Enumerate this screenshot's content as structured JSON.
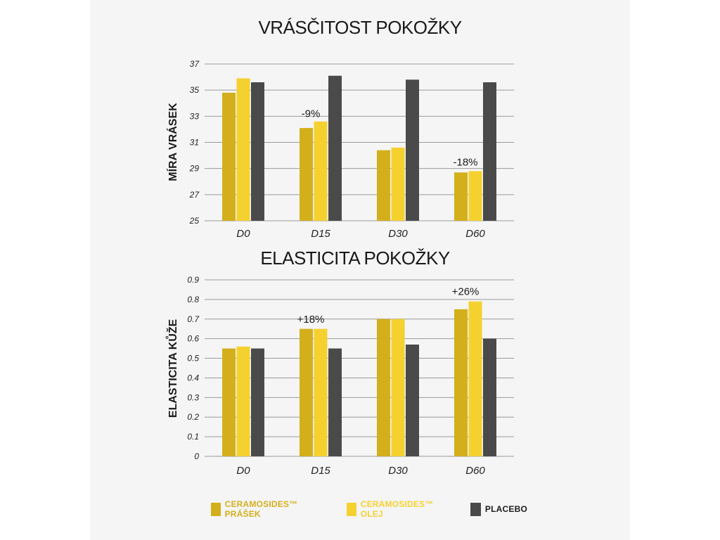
{
  "chart_data": [
    {
      "type": "bar",
      "title": "VRÁSČITOST POKOŽKY",
      "ylabel": "MÍRA VRÁSEK",
      "xlabel": "",
      "categories": [
        "D0",
        "D15",
        "D30",
        "D60"
      ],
      "yticks": [
        "25",
        "27",
        "29",
        "31",
        "33",
        "35",
        "37"
      ],
      "ylim": [
        25,
        37
      ],
      "grid": true,
      "series": [
        {
          "name": "CERAMOSIDES™ PRÁŠEK",
          "color": "#d4af1c",
          "values": [
            34.8,
            32.1,
            30.4,
            28.7
          ]
        },
        {
          "name": "CERAMOSIDES™ OLEJ",
          "color": "#f5d130",
          "values": [
            35.9,
            32.6,
            30.6,
            28.8
          ]
        },
        {
          "name": "PLACEBO",
          "color": "#4a4a4a",
          "values": [
            35.6,
            36.1,
            35.8,
            35.6
          ]
        }
      ],
      "annotations": [
        {
          "text": "-9%",
          "category": "D15",
          "anchor_value": 33.2
        },
        {
          "text": "-18%",
          "category": "D60",
          "anchor_value": 29.5
        }
      ]
    },
    {
      "type": "bar",
      "title": "ELASTICITA POKOŽKY",
      "ylabel": "ELASTICITA KŮŽE",
      "xlabel": "",
      "categories": [
        "D0",
        "D15",
        "D30",
        "D60"
      ],
      "yticks": [
        "0",
        "0.1",
        "0.2",
        "0.3",
        "0.4",
        "0.5",
        "0.6",
        "0.7",
        "0.8",
        "0.9"
      ],
      "ylim": [
        0,
        0.9
      ],
      "grid": true,
      "series": [
        {
          "name": "CERAMOSIDES™ PRÁŠEK",
          "color": "#d4af1c",
          "values": [
            0.55,
            0.65,
            0.7,
            0.75
          ]
        },
        {
          "name": "CERAMOSIDES™ OLEJ",
          "color": "#f5d130",
          "values": [
            0.56,
            0.65,
            0.7,
            0.79
          ]
        },
        {
          "name": "PLACEBO",
          "color": "#4a4a4a",
          "values": [
            0.55,
            0.55,
            0.57,
            0.6
          ]
        }
      ],
      "annotations": [
        {
          "text": "+18%",
          "category": "D15",
          "anchor_value": 0.7
        },
        {
          "text": "+26%",
          "category": "D60",
          "anchor_value": 0.84
        }
      ]
    }
  ],
  "legend": [
    {
      "label": "CERAMOSIDES™ PRÁŠEK",
      "color": "#d4af1c",
      "text_color": "#d4af1c"
    },
    {
      "label": "CERAMOSIDES™ OLEJ",
      "color": "#f5d130",
      "text_color": "#f5d130"
    },
    {
      "label": "PLACEBO",
      "color": "#4a4a4a",
      "text_color": "#1a1a1a"
    }
  ]
}
